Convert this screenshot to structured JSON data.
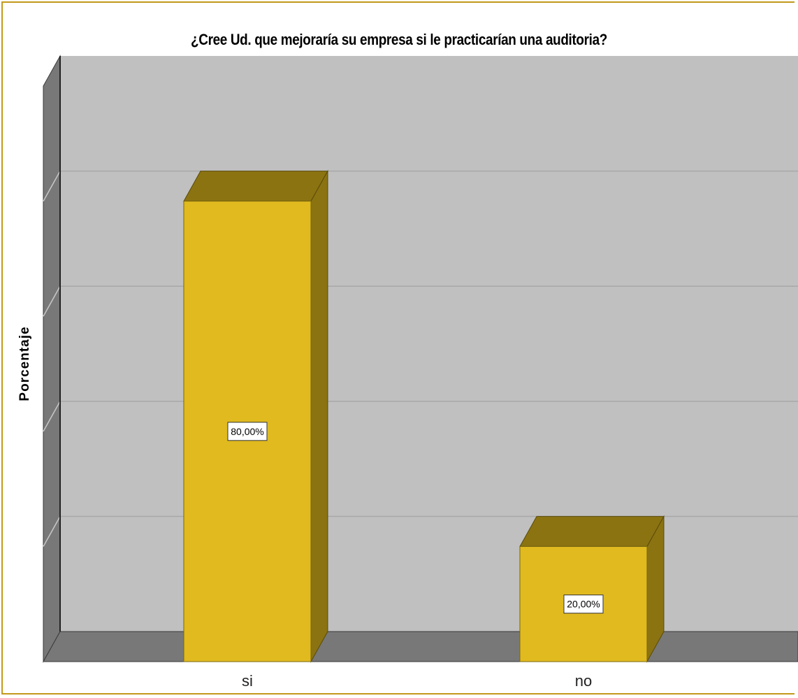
{
  "chart_data": {
    "type": "bar",
    "title": "¿Cree Ud. que mejoraría su empresa si le practicarían una auditoria?",
    "xlabel": "",
    "ylabel": "Porcentaje",
    "categories": [
      "si",
      "no"
    ],
    "values": [
      80,
      20
    ],
    "data_labels": [
      "80,00%",
      "20,00%"
    ],
    "ylim": [
      0,
      100
    ],
    "grid": true,
    "legend": "none",
    "colors": {
      "bar_front": "#e0ba1f",
      "bar_top": "#8b7312",
      "bar_side": "#8b7312",
      "plot_background": "#c0c0c0",
      "walls": "#787878",
      "frame": "#c39a1b"
    }
  }
}
